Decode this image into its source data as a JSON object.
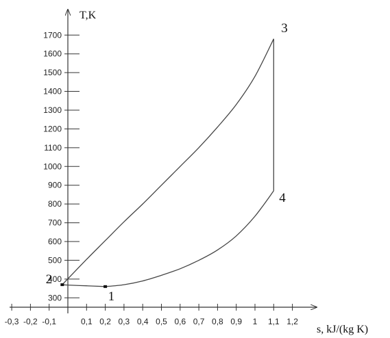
{
  "chart_data": {
    "type": "line",
    "ylabel": "T,K",
    "xlabel": "s, kJ/(kg K)",
    "x_ticks": [
      "-0,3",
      "-0,2",
      "-0,1",
      "0,1",
      "0,2",
      "0,3",
      "0,4",
      "0,5",
      "0,6",
      "0,7",
      "0,8",
      "0,9",
      "1",
      "1,1",
      "1,2"
    ],
    "y_ticks": [
      "300",
      "400",
      "500",
      "600",
      "700",
      "800",
      "900",
      "1000",
      "1100",
      "1200",
      "1300",
      "1400",
      "1500",
      "1600",
      "1700"
    ],
    "xlim": [
      -0.3,
      1.3
    ],
    "ylim": [
      250,
      1800
    ],
    "grid": false,
    "points": [
      {
        "label": "1",
        "s": 0.2,
        "T": 360
      },
      {
        "label": "2",
        "s": -0.03,
        "T": 370
      },
      {
        "label": "3",
        "s": 1.1,
        "T": 1680
      },
      {
        "label": "4",
        "s": 1.1,
        "T": 870
      }
    ],
    "processes": [
      {
        "from": "1",
        "to": "2",
        "curve": [
          [
            0.2,
            360
          ],
          [
            0.1,
            364
          ],
          [
            0.0,
            368
          ],
          [
            -0.03,
            370
          ]
        ]
      },
      {
        "from": "2",
        "to": "3",
        "curve": [
          [
            -0.03,
            370
          ],
          [
            0.1,
            505
          ],
          [
            0.2,
            605
          ],
          [
            0.3,
            705
          ],
          [
            0.4,
            800
          ],
          [
            0.5,
            900
          ],
          [
            0.6,
            1000
          ],
          [
            0.7,
            1100
          ],
          [
            0.8,
            1210
          ],
          [
            0.9,
            1330
          ],
          [
            1.0,
            1480
          ],
          [
            1.1,
            1680
          ]
        ]
      },
      {
        "from": "3",
        "to": "4",
        "curve": [
          [
            1.1,
            1680
          ],
          [
            1.1,
            870
          ]
        ]
      },
      {
        "from": "4",
        "to": "1",
        "curve": [
          [
            1.1,
            870
          ],
          [
            1.0,
            735
          ],
          [
            0.9,
            630
          ],
          [
            0.8,
            555
          ],
          [
            0.7,
            500
          ],
          [
            0.6,
            455
          ],
          [
            0.5,
            420
          ],
          [
            0.4,
            390
          ],
          [
            0.3,
            370
          ],
          [
            0.2,
            360
          ]
        ]
      }
    ]
  }
}
